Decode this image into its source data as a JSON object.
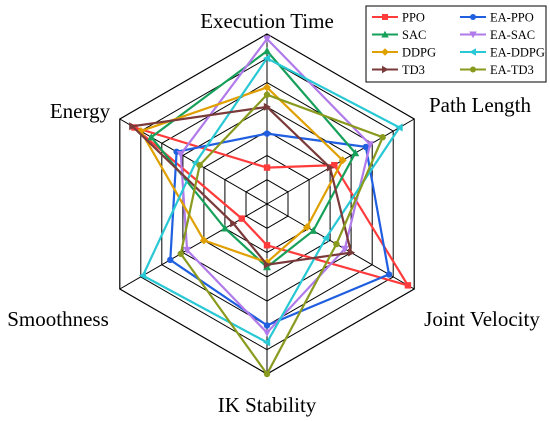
{
  "chart_data": {
    "type": "radar",
    "axes": [
      "Execution Time",
      "Path Length",
      "Joint Velocity",
      "IK Stability",
      "Smoothness",
      "Energy"
    ],
    "rlim": [
      0,
      7
    ],
    "rings": 7,
    "grid": true,
    "legend": {
      "placement": "top-right",
      "columns": 2
    },
    "series": [
      {
        "name": "PPO",
        "color": "#ff3b3b",
        "marker": "square",
        "values": [
          1.5,
          3.2,
          6.7,
          1.7,
          1.2,
          6.3
        ]
      },
      {
        "name": "EA-PPO",
        "color": "#1f5fe0",
        "marker": "circle",
        "values": [
          2.9,
          4.7,
          5.8,
          5.0,
          4.6,
          4.3
        ]
      },
      {
        "name": "SAC",
        "color": "#16a05a",
        "marker": "triangle-up",
        "values": [
          6.3,
          4.2,
          2.2,
          2.6,
          2.0,
          5.5
        ]
      },
      {
        "name": "EA-SAC",
        "color": "#b07aea",
        "marker": "triangle-down",
        "values": [
          6.8,
          4.9,
          3.7,
          5.3,
          3.8,
          4.1
        ]
      },
      {
        "name": "DDPG",
        "color": "#e0a000",
        "marker": "diamond",
        "values": [
          4.8,
          3.6,
          1.9,
          2.4,
          3.0,
          6.0
        ]
      },
      {
        "name": "EA-DDPG",
        "color": "#28c8d4",
        "marker": "triangle-left",
        "values": [
          6.0,
          6.3,
          2.8,
          5.7,
          5.9,
          3.4
        ]
      },
      {
        "name": "TD3",
        "color": "#7b3a3a",
        "marker": "triangle-right",
        "values": [
          4.0,
          3.0,
          4.0,
          2.5,
          1.6,
          6.4
        ]
      },
      {
        "name": "EA-TD3",
        "color": "#8a9a1e",
        "marker": "circle",
        "values": [
          4.5,
          5.5,
          3.3,
          7.0,
          4.1,
          3.2
        ]
      }
    ]
  }
}
